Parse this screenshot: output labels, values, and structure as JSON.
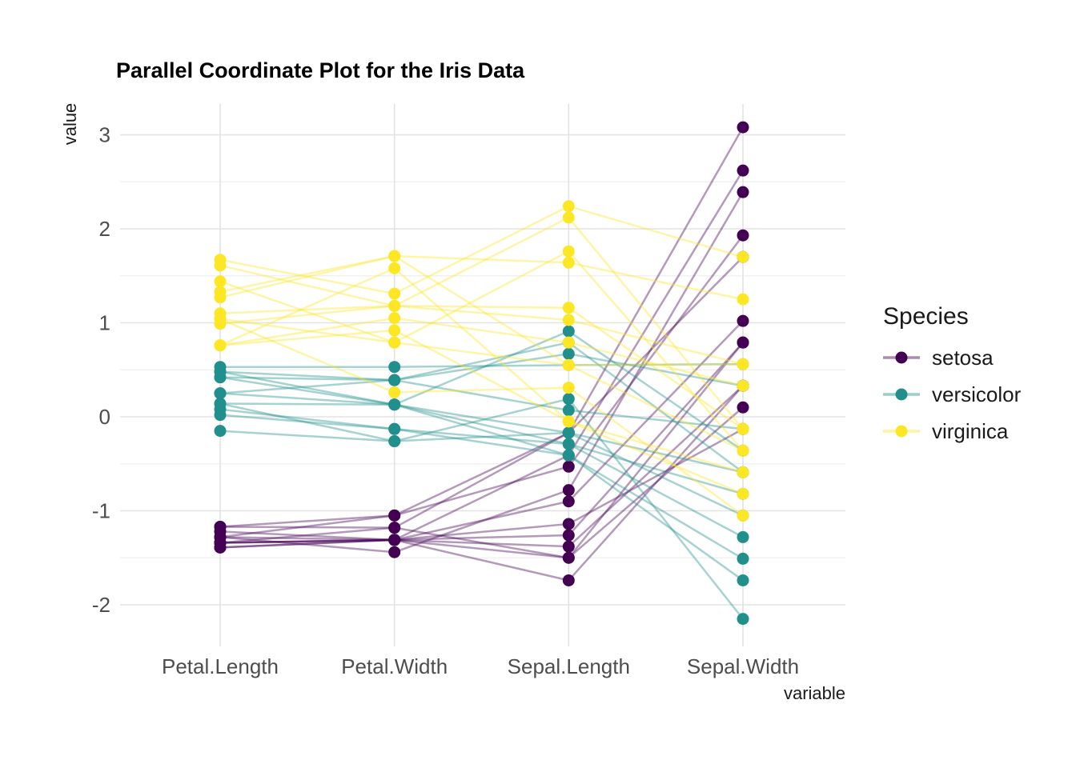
{
  "chart_data": {
    "type": "line",
    "subtype": "parallel-coordinates",
    "title": "Parallel Coordinate Plot for the Iris Data",
    "ylabel": "value",
    "xlabel": "variable",
    "axes": [
      "Petal.Length",
      "Petal.Width",
      "Sepal.Length",
      "Sepal.Width"
    ],
    "y_ticks": [
      3,
      2,
      1,
      0,
      -1,
      -2
    ],
    "y_minor": [
      2.5,
      1.5,
      0.5,
      -0.5,
      -1.5
    ],
    "ylim": [
      -2.45,
      3.35
    ],
    "grid": true,
    "legend": {
      "title": "Species",
      "position": "right"
    },
    "line_alpha": 0.4,
    "colors": {
      "setosa": "#440154",
      "versicolor": "#21908c",
      "virginica": "#fde725"
    },
    "series": [
      {
        "name": "setosa",
        "color": "#440154",
        "rows": [
          [
            -1.28,
            -1.05,
            -0.17,
            3.08
          ],
          [
            -1.34,
            -1.31,
            -0.41,
            2.62
          ],
          [
            -1.28,
            -1.44,
            -0.78,
            2.39
          ],
          [
            -1.17,
            -1.05,
            -0.53,
            1.93
          ],
          [
            -1.17,
            -1.18,
            -0.17,
            1.7
          ],
          [
            -1.34,
            -1.31,
            -0.9,
            1.02
          ],
          [
            -1.34,
            -1.18,
            -1.5,
            0.79
          ],
          [
            -1.22,
            -1.31,
            -1.26,
            0.79
          ],
          [
            -1.39,
            -1.31,
            -1.38,
            0.33
          ],
          [
            -1.28,
            -1.31,
            -1.5,
            0.1
          ],
          [
            -1.34,
            -1.31,
            -1.14,
            -0.13
          ],
          [
            -1.39,
            -1.31,
            -1.74,
            0.33
          ]
        ]
      },
      {
        "name": "versicolor",
        "color": "#21908c",
        "rows": [
          [
            0.42,
            0.39,
            0.67,
            0.33
          ],
          [
            0.48,
            0.39,
            0.79,
            -0.59
          ],
          [
            0.42,
            0.13,
            -0.17,
            -0.59
          ],
          [
            0.53,
            0.53,
            0.55,
            0.56
          ],
          [
            0.48,
            0.13,
            0.91,
            -0.36
          ],
          [
            0.25,
            0.13,
            -0.29,
            -0.82
          ],
          [
            0.25,
            0.39,
            0.07,
            -0.13
          ],
          [
            0.14,
            -0.26,
            0.19,
            -2.15
          ],
          [
            0.08,
            -0.13,
            -0.29,
            -1.28
          ],
          [
            0.02,
            -0.13,
            -0.41,
            -1.51
          ],
          [
            0.14,
            0.13,
            -0.41,
            -1.74
          ],
          [
            -0.15,
            -0.26,
            -0.17,
            -1.05
          ]
        ]
      },
      {
        "name": "virginica",
        "color": "#fde725",
        "rows": [
          [
            1.67,
            1.31,
            2.24,
            1.7
          ],
          [
            1.61,
            1.18,
            2.12,
            -0.13
          ],
          [
            1.44,
            0.79,
            1.76,
            -0.36
          ],
          [
            1.33,
            1.71,
            1.64,
            1.25
          ],
          [
            0.99,
            1.18,
            1.16,
            -0.13
          ],
          [
            1.1,
            1.18,
            1.03,
            0.56
          ],
          [
            1.27,
            1.71,
            0.55,
            0.56
          ],
          [
            0.76,
            1.58,
            -0.05,
            -0.59
          ],
          [
            1.04,
            0.79,
            0.55,
            -0.36
          ],
          [
            0.76,
            0.92,
            -0.05,
            -0.82
          ],
          [
            0.76,
            1.05,
            0.79,
            0.33
          ],
          [
            1.04,
            0.26,
            0.31,
            -1.05
          ]
        ]
      }
    ]
  }
}
